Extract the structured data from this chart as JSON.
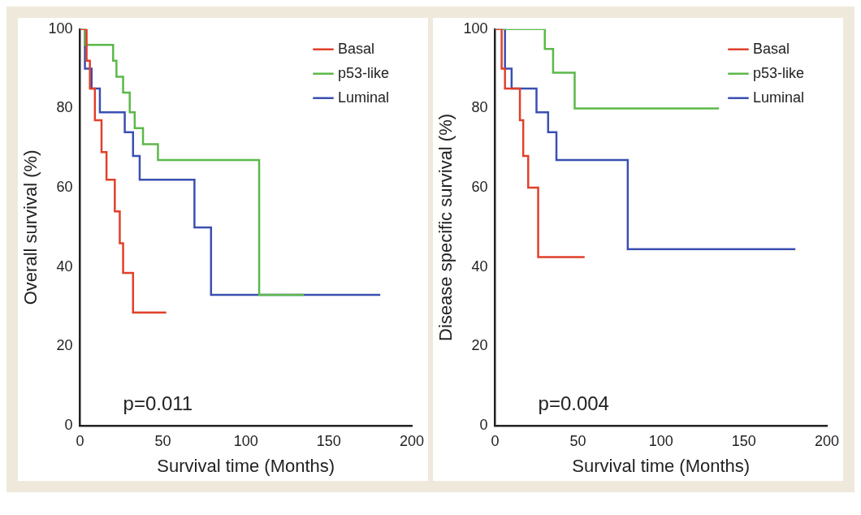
{
  "chart_data": [
    {
      "type": "step",
      "xlabel": "Survival time (Months)",
      "ylabel": "Overall survival (%)",
      "xlim": [
        0,
        200
      ],
      "xticks": [
        0,
        50,
        100,
        150,
        200
      ],
      "ylim": [
        0,
        100
      ],
      "yticks": [
        0,
        20,
        40,
        60,
        80,
        100
      ],
      "grid": false,
      "legend": "top right",
      "annotations": [
        "p=0.011"
      ],
      "series": [
        {
          "name": "Basal",
          "color": "#e0402a",
          "x": [
            0,
            4,
            6,
            9,
            13,
            16,
            21,
            24,
            26,
            32,
            52
          ],
          "values": [
            100,
            92,
            85,
            77,
            69,
            62,
            54,
            46,
            38.5,
            28.5,
            28.5
          ]
        },
        {
          "name": "p53-like",
          "color": "#5cb84a",
          "x": [
            0,
            3,
            20,
            22,
            26,
            30,
            33,
            38,
            47,
            108,
            135
          ],
          "values": [
            100,
            96,
            92,
            88,
            84,
            79,
            75,
            71,
            67,
            33,
            33
          ]
        },
        {
          "name": "Luminal",
          "color": "#3a4fb0",
          "x": [
            0,
            3,
            7,
            12,
            27,
            32,
            36,
            69,
            79,
            181
          ],
          "values": [
            100,
            90,
            85,
            79,
            74,
            68,
            62,
            50,
            33,
            33
          ]
        }
      ]
    },
    {
      "type": "step",
      "xlabel": "Survival time (Months)",
      "ylabel": "Disease specific survival (%)",
      "xlim": [
        0,
        200
      ],
      "xticks": [
        0,
        50,
        100,
        150,
        200
      ],
      "ylim": [
        0,
        100
      ],
      "yticks": [
        0,
        20,
        40,
        60,
        80,
        100
      ],
      "grid": false,
      "legend": "top right",
      "annotations": [
        "p=0.004"
      ],
      "series": [
        {
          "name": "Basal",
          "color": "#e0402a",
          "x": [
            0,
            4,
            6,
            15,
            17,
            20,
            26,
            54
          ],
          "values": [
            100,
            90,
            85,
            77,
            68,
            60,
            42.5,
            42.5
          ]
        },
        {
          "name": "p53-like",
          "color": "#5cb84a",
          "x": [
            0,
            30,
            35,
            48,
            135
          ],
          "values": [
            100,
            95,
            89,
            80,
            80
          ]
        },
        {
          "name": "Luminal",
          "color": "#3a4fb0",
          "x": [
            0,
            6,
            10,
            25,
            32,
            37,
            80,
            181
          ],
          "values": [
            100,
            90,
            85,
            79,
            74,
            67,
            44.5,
            44.5
          ]
        }
      ]
    }
  ]
}
